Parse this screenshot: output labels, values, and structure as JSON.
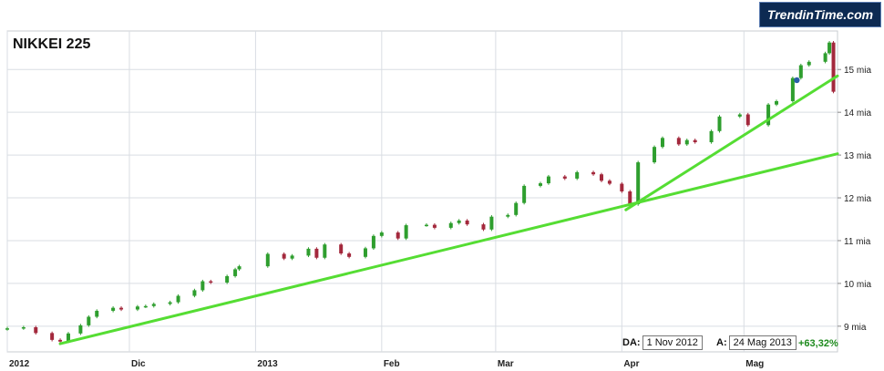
{
  "title": "NIKKEI 225",
  "logo_text": "TrendinTime.com",
  "range": {
    "from_label": "DA:",
    "from_value": "1 Nov 2012",
    "to_label": "A:",
    "to_value": "24 Mag 2013"
  },
  "performance": "+63,32%",
  "colors": {
    "up": "#2e9e2e",
    "down": "#a3283c",
    "trendline": "#55dd33",
    "grid": "#d9dde3",
    "marker": "#2b5fa8"
  },
  "chart_data": {
    "type": "candlestick",
    "title": "NIKKEI 225",
    "x_range": [
      "2012-11-01",
      "2013-05-24"
    ],
    "y_range": [
      8400,
      15900
    ],
    "y_ticks": [
      {
        "value": 9000,
        "label": "9 mia"
      },
      {
        "value": 10000,
        "label": "10 mia"
      },
      {
        "value": 11000,
        "label": "11 mia"
      },
      {
        "value": 12000,
        "label": "12 mia"
      },
      {
        "value": 13000,
        "label": "13 mia"
      },
      {
        "value": 14000,
        "label": "14 mia"
      },
      {
        "value": 15000,
        "label": "15 mia"
      }
    ],
    "x_ticks": [
      {
        "date": "2012-11-01",
        "label": "2012"
      },
      {
        "date": "2012-12-01",
        "label": "Dic"
      },
      {
        "date": "2013-01-01",
        "label": "2013"
      },
      {
        "date": "2013-02-01",
        "label": "Feb"
      },
      {
        "date": "2013-03-01",
        "label": "Mar"
      },
      {
        "date": "2013-04-01",
        "label": "Apr"
      },
      {
        "date": "2013-05-01",
        "label": "Mag"
      }
    ],
    "grid": true,
    "closes": [
      [
        "2012-11-01",
        8950
      ],
      [
        "2012-11-05",
        8975
      ],
      [
        "2012-11-08",
        8840
      ],
      [
        "2012-11-12",
        8680
      ],
      [
        "2012-11-14",
        8640
      ],
      [
        "2012-11-16",
        8830
      ],
      [
        "2012-11-19",
        9020
      ],
      [
        "2012-11-21",
        9220
      ],
      [
        "2012-11-23",
        9360
      ],
      [
        "2012-11-27",
        9430
      ],
      [
        "2012-11-29",
        9390
      ],
      [
        "2012-12-03",
        9460
      ],
      [
        "2012-12-05",
        9470
      ],
      [
        "2012-12-07",
        9520
      ],
      [
        "2012-12-11",
        9560
      ],
      [
        "2012-12-13",
        9710
      ],
      [
        "2012-12-17",
        9840
      ],
      [
        "2012-12-19",
        10050
      ],
      [
        "2012-12-21",
        10020
      ],
      [
        "2012-12-25",
        10170
      ],
      [
        "2012-12-27",
        10330
      ],
      [
        "2012-12-28",
        10400
      ],
      [
        "2013-01-04",
        10690
      ],
      [
        "2013-01-08",
        10580
      ],
      [
        "2013-01-10",
        10650
      ],
      [
        "2013-01-14",
        10810
      ],
      [
        "2013-01-16",
        10600
      ],
      [
        "2013-01-18",
        10910
      ],
      [
        "2013-01-22",
        10700
      ],
      [
        "2013-01-24",
        10620
      ],
      [
        "2013-01-28",
        10820
      ],
      [
        "2013-01-30",
        11110
      ],
      [
        "2013-02-01",
        11190
      ],
      [
        "2013-02-05",
        11050
      ],
      [
        "2013-02-07",
        11360
      ],
      [
        "2013-02-12",
        11370
      ],
      [
        "2013-02-14",
        11300
      ],
      [
        "2013-02-18",
        11410
      ],
      [
        "2013-02-20",
        11470
      ],
      [
        "2013-02-22",
        11380
      ],
      [
        "2013-02-26",
        11260
      ],
      [
        "2013-02-28",
        11560
      ],
      [
        "2013-03-04",
        11600
      ],
      [
        "2013-03-06",
        11880
      ],
      [
        "2013-03-08",
        12280
      ],
      [
        "2013-03-12",
        12340
      ],
      [
        "2013-03-14",
        12500
      ],
      [
        "2013-03-18",
        12450
      ],
      [
        "2013-03-21",
        12600
      ],
      [
        "2013-03-25",
        12550
      ],
      [
        "2013-03-27",
        12400
      ],
      [
        "2013-03-29",
        12330
      ],
      [
        "2013-04-01",
        12150
      ],
      [
        "2013-04-03",
        11850
      ],
      [
        "2013-04-05",
        12830
      ],
      [
        "2013-04-09",
        13190
      ],
      [
        "2013-04-11",
        13400
      ],
      [
        "2013-04-15",
        13250
      ],
      [
        "2013-04-17",
        13350
      ],
      [
        "2013-04-19",
        13300
      ],
      [
        "2013-04-23",
        13560
      ],
      [
        "2013-04-25",
        13900
      ],
      [
        "2013-04-30",
        13950
      ],
      [
        "2013-05-02",
        13700
      ],
      [
        "2013-05-07",
        14180
      ],
      [
        "2013-05-09",
        14260
      ],
      [
        "2013-05-13",
        14800
      ],
      [
        "2013-05-15",
        15100
      ],
      [
        "2013-05-17",
        15180
      ],
      [
        "2013-05-21",
        15380
      ],
      [
        "2013-05-22",
        15630
      ],
      [
        "2013-05-23",
        14480
      ]
    ],
    "marker": {
      "date": "2013-05-14",
      "value": 14750
    },
    "trendlines": [
      {
        "from": [
          "2012-11-14",
          8590
        ],
        "to": [
          "2013-05-24",
          13030
        ]
      },
      {
        "from": [
          "2013-04-02",
          11720
        ],
        "to": [
          "2013-05-24",
          14850
        ]
      }
    ]
  }
}
